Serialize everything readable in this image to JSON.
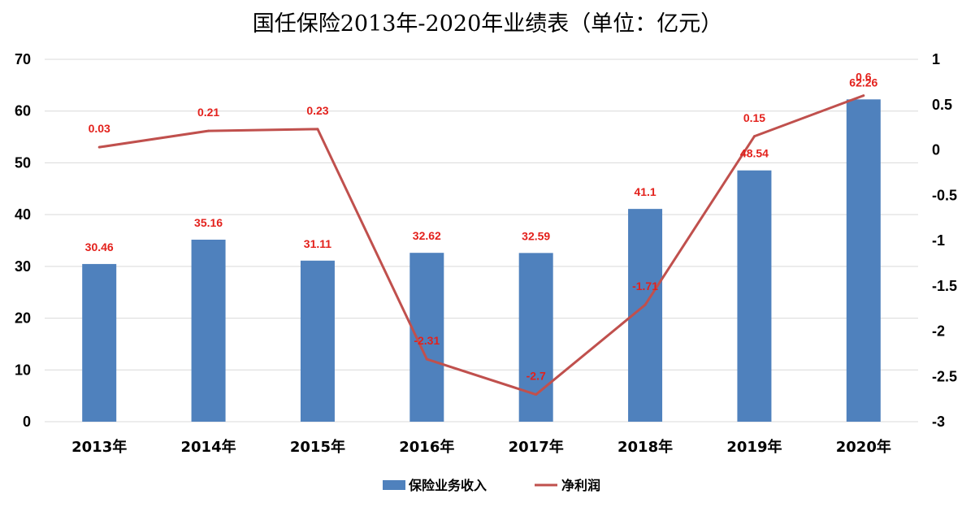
{
  "chart_data": {
    "type": "bar+line",
    "title": "国任保险2013年-2020年业绩表（单位：亿元）",
    "categories": [
      "2013年",
      "2014年",
      "2015年",
      "2016年",
      "2017年",
      "2018年",
      "2019年",
      "2020年"
    ],
    "series": [
      {
        "name": "保险业务收入",
        "type": "bar",
        "axis": "left",
        "color": "#4f81bd",
        "values": [
          30.46,
          35.16,
          31.11,
          32.62,
          32.59,
          41.1,
          48.54,
          62.26
        ],
        "labels": [
          "30.46",
          "35.16",
          "31.11",
          "32.62",
          "32.59",
          "41.1",
          "48.54",
          "62.26"
        ]
      },
      {
        "name": "净利润",
        "type": "line",
        "axis": "right",
        "color": "#c0504d",
        "values": [
          0.03,
          0.21,
          0.23,
          -2.31,
          -2.7,
          -1.71,
          0.15,
          0.6
        ],
        "labels": [
          "0.03",
          "0.21",
          "0.23",
          "-2.31",
          "-2.7",
          "-1.71",
          "0.15",
          "0.6"
        ]
      }
    ],
    "y_left": {
      "min": 0,
      "max": 70,
      "ticks": [
        "0",
        "10",
        "20",
        "30",
        "40",
        "50",
        "60",
        "70"
      ]
    },
    "y_right": {
      "min": -3,
      "max": 1,
      "ticks": [
        "-3",
        "-2.5",
        "-2",
        "-1.5",
        "-1",
        "-0.5",
        "0",
        "0.5",
        "1"
      ]
    },
    "grid": true,
    "legend": "bottom-center",
    "label_color": "#e3211c"
  }
}
